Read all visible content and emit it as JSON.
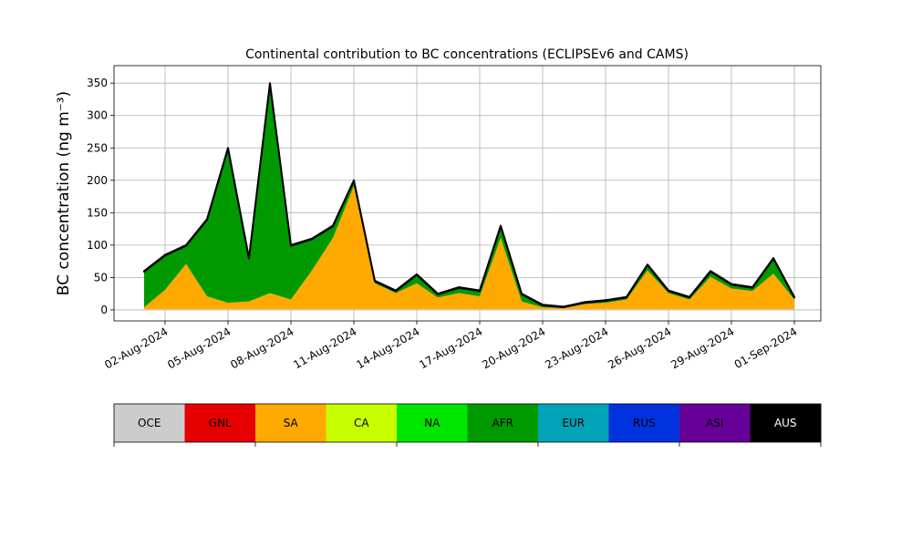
{
  "chart_data": {
    "type": "stacked_area",
    "title": "Continental contribution to BC concentrations (ECLIPSEv6 and CAMS)",
    "y_label": "BC concentration (ng m⁻³)",
    "grid": true,
    "x": [
      "2024-08-01",
      "2024-08-02",
      "2024-08-03",
      "2024-08-04",
      "2024-08-05",
      "2024-08-06",
      "2024-08-07",
      "2024-08-08",
      "2024-08-09",
      "2024-08-10",
      "2024-08-11",
      "2024-08-12",
      "2024-08-13",
      "2024-08-14",
      "2024-08-15",
      "2024-08-16",
      "2024-08-17",
      "2024-08-18",
      "2024-08-19",
      "2024-08-20",
      "2024-08-21",
      "2024-08-22",
      "2024-08-23",
      "2024-08-24",
      "2024-08-25",
      "2024-08-26",
      "2024-08-27",
      "2024-08-28",
      "2024-08-29",
      "2024-08-30",
      "2024-08-31",
      "2024-09-01"
    ],
    "xticks": [
      {
        "value": "2024-08-02",
        "label": "02-Aug-2024"
      },
      {
        "value": "2024-08-05",
        "label": "05-Aug-2024"
      },
      {
        "value": "2024-08-08",
        "label": "08-Aug-2024"
      },
      {
        "value": "2024-08-11",
        "label": "11-Aug-2024"
      },
      {
        "value": "2024-08-14",
        "label": "14-Aug-2024"
      },
      {
        "value": "2024-08-17",
        "label": "17-Aug-2024"
      },
      {
        "value": "2024-08-20",
        "label": "20-Aug-2024"
      },
      {
        "value": "2024-08-23",
        "label": "23-Aug-2024"
      },
      {
        "value": "2024-08-26",
        "label": "26-Aug-2024"
      },
      {
        "value": "2024-08-29",
        "label": "29-Aug-2024"
      },
      {
        "value": "2024-09-01",
        "label": "01-Sep-2024"
      }
    ],
    "ylim": [
      -17,
      377
    ],
    "yticks": [
      0,
      50,
      100,
      150,
      200,
      250,
      300,
      350
    ],
    "series": [
      {
        "name": "OCE",
        "color": "#cccccc",
        "values": [
          1,
          1,
          1,
          1,
          1,
          1,
          1,
          1,
          1,
          1,
          1,
          1,
          1,
          1,
          1,
          1,
          1,
          1,
          1,
          1,
          1,
          1,
          1,
          1,
          1,
          1,
          1,
          1,
          1,
          1,
          1,
          1
        ]
      },
      {
        "name": "GNL",
        "color": "#e60000",
        "values": [
          0,
          0,
          0,
          0,
          0,
          0,
          0,
          0,
          0,
          0,
          0,
          0,
          0,
          0,
          0,
          0,
          0,
          0,
          0,
          0,
          0,
          0,
          0,
          0,
          0,
          0,
          0,
          0,
          0,
          0,
          0,
          0
        ]
      },
      {
        "name": "SA",
        "color": "#ffaa00",
        "values": [
          3,
          30,
          70,
          20,
          10,
          12,
          25,
          15,
          60,
          110,
          190,
          40,
          25,
          40,
          18,
          25,
          20,
          110,
          12,
          3,
          2,
          8,
          10,
          15,
          60,
          25,
          15,
          50,
          32,
          28,
          55,
          15
        ]
      },
      {
        "name": "CA",
        "color": "#c8ff00",
        "values": [
          0,
          0,
          0,
          0,
          0,
          0,
          0,
          0,
          0,
          0,
          0,
          0,
          0,
          0,
          0,
          0,
          0,
          0,
          0,
          0,
          0,
          0,
          0,
          0,
          0,
          0,
          0,
          0,
          0,
          0,
          0,
          0
        ]
      },
      {
        "name": "NA",
        "color": "#00e600",
        "values": [
          0,
          0,
          0,
          0,
          0,
          0,
          0,
          0,
          0,
          0,
          0,
          0,
          0,
          0,
          0,
          0,
          0,
          0,
          0,
          0,
          0,
          0,
          0,
          0,
          0,
          0,
          0,
          0,
          0,
          0,
          0,
          0
        ]
      },
      {
        "name": "AFR",
        "color": "#009900",
        "values": [
          55,
          53,
          28,
          118,
          238,
          66,
          323,
          83,
          48,
          18,
          8,
          3,
          3,
          13,
          5,
          8,
          8,
          18,
          11,
          3,
          1,
          2,
          3,
          3,
          8,
          3,
          3,
          8,
          6,
          5,
          23,
          3
        ]
      },
      {
        "name": "EUR",
        "color": "#00a3b8",
        "values": [
          0,
          0,
          0,
          0,
          0,
          0,
          0,
          0,
          0,
          0,
          0,
          0,
          0,
          0,
          0,
          0,
          0,
          0,
          0,
          0,
          0,
          0,
          0,
          0,
          0,
          0,
          0,
          0,
          0,
          0,
          0,
          0
        ]
      },
      {
        "name": "RUS",
        "color": "#0033dd",
        "values": [
          0,
          0,
          0,
          0,
          0,
          0,
          0,
          0,
          0,
          0,
          0,
          0,
          0,
          0,
          0,
          0,
          0,
          0,
          0,
          0,
          0,
          0,
          0,
          0,
          0,
          0,
          0,
          0,
          0,
          0,
          0,
          0
        ]
      },
      {
        "name": "ASI",
        "color": "#660099",
        "values": [
          0,
          0,
          0,
          0,
          0,
          0,
          0,
          0,
          0,
          0,
          0,
          0,
          0,
          0,
          0,
          0,
          0,
          0,
          0,
          0,
          0,
          0,
          0,
          0,
          0,
          0,
          0,
          0,
          0,
          0,
          0,
          0
        ]
      },
      {
        "name": "AUS",
        "color": "#000000",
        "values": [
          1,
          1,
          1,
          1,
          1,
          1,
          1,
          1,
          1,
          1,
          1,
          1,
          1,
          1,
          1,
          1,
          1,
          1,
          1,
          1,
          1,
          1,
          1,
          1,
          1,
          1,
          1,
          1,
          1,
          1,
          1,
          1
        ]
      }
    ]
  }
}
